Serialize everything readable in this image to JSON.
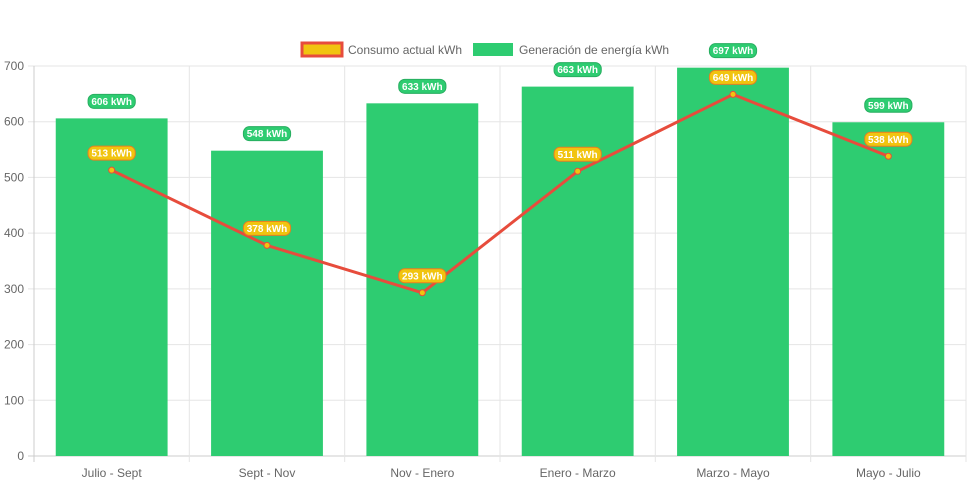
{
  "chart_data": {
    "type": "bar",
    "categories": [
      "Julio - Sept",
      "Sept - Nov",
      "Nov - Enero",
      "Enero - Marzo",
      "Marzo - Mayo",
      "Mayo - Julio"
    ],
    "series": [
      {
        "name": "Consumo actual kWh",
        "type": "line",
        "values": [
          513,
          378,
          293,
          511,
          649,
          538
        ],
        "labels": [
          "513 kWh",
          "378 kWh",
          "293 kWh",
          "511 kWh",
          "649 kWh",
          "538 kWh"
        ],
        "color": "#e74c3c",
        "fill_color": "#f1c40f"
      },
      {
        "name": "Generación de energía kWh",
        "type": "bar",
        "values": [
          606,
          548,
          633,
          663,
          697,
          599
        ],
        "labels": [
          "606 kWh",
          "548 kWh",
          "633 kWh",
          "663 kWh",
          "697 kWh",
          "599 kWh"
        ],
        "color": "#2ecc71"
      }
    ],
    "yticks": [
      "0",
      "100",
      "200",
      "300",
      "400",
      "500",
      "600",
      "700"
    ],
    "ylim": [
      0,
      700
    ],
    "grid": true,
    "legend_position": "top-center"
  }
}
